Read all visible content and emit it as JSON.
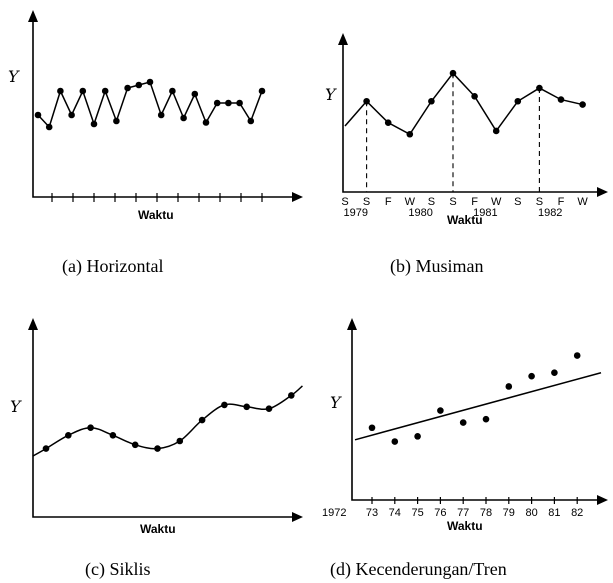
{
  "chart_data": [
    {
      "type": "line",
      "caption": "(a) Horizontal",
      "ylabel": "Y",
      "xlabel": "Waktu",
      "points": [
        [
          1,
          0.5
        ],
        [
          2,
          0.42
        ],
        [
          3,
          0.66
        ],
        [
          4,
          0.5
        ],
        [
          5,
          0.66
        ],
        [
          6,
          0.44
        ],
        [
          7,
          0.66
        ],
        [
          8,
          0.46
        ],
        [
          9,
          0.68
        ],
        [
          10,
          0.7
        ],
        [
          11,
          0.72
        ],
        [
          12,
          0.5
        ],
        [
          13,
          0.66
        ],
        [
          14,
          0.48
        ],
        [
          15,
          0.64
        ],
        [
          16,
          0.45
        ],
        [
          17,
          0.58
        ],
        [
          18,
          0.58
        ],
        [
          19,
          0.58
        ],
        [
          20,
          0.46
        ],
        [
          21,
          0.66
        ]
      ]
    },
    {
      "type": "line",
      "caption": "(b) Musiman",
      "ylabel": "Y",
      "xlabel": "Waktu",
      "x_tick_labels": [
        "S",
        "S",
        "F",
        "W",
        "S",
        "S",
        "F",
        "W",
        "S",
        "S",
        "F",
        "W"
      ],
      "year_labels": [
        "1979",
        "1980",
        "1981",
        "1982"
      ],
      "points": [
        [
          0,
          0.4
        ],
        [
          1,
          0.55
        ],
        [
          2,
          0.42
        ],
        [
          3,
          0.35
        ],
        [
          4,
          0.55
        ],
        [
          5,
          0.72
        ],
        [
          6,
          0.58
        ],
        [
          7,
          0.37
        ],
        [
          8,
          0.55
        ],
        [
          9,
          0.63
        ],
        [
          10,
          0.56
        ],
        [
          11,
          0.53
        ]
      ],
      "dashed_drop_at": [
        1,
        5,
        9
      ]
    },
    {
      "type": "line",
      "caption": "(c) Siklis",
      "ylabel": "Y",
      "xlabel": "Waktu",
      "points": [
        [
          0,
          0.36
        ],
        [
          1,
          0.43
        ],
        [
          2,
          0.47
        ],
        [
          3,
          0.43
        ],
        [
          4,
          0.38
        ],
        [
          5,
          0.36
        ],
        [
          6,
          0.4
        ],
        [
          7,
          0.51
        ],
        [
          8,
          0.59
        ],
        [
          9,
          0.58
        ],
        [
          10,
          0.57
        ],
        [
          11,
          0.64
        ]
      ],
      "curve": [
        [
          -0.6,
          0.32
        ],
        [
          0,
          0.36
        ],
        [
          1,
          0.43
        ],
        [
          2,
          0.47
        ],
        [
          3,
          0.43
        ],
        [
          4,
          0.38
        ],
        [
          5,
          0.36
        ],
        [
          6,
          0.4
        ],
        [
          7,
          0.51
        ],
        [
          8,
          0.59
        ],
        [
          9,
          0.58
        ],
        [
          10,
          0.57
        ],
        [
          11,
          0.64
        ],
        [
          11.5,
          0.69
        ]
      ]
    },
    {
      "type": "scatter",
      "caption": "(d) Kecenderungan/Tren",
      "ylabel": "Y",
      "xlabel": "Waktu",
      "x_origin_label": "1972",
      "categories": [
        "73",
        "74",
        "75",
        "76",
        "77",
        "78",
        "79",
        "80",
        "81",
        "82"
      ],
      "values": [
        0.42,
        0.34,
        0.37,
        0.52,
        0.45,
        0.47,
        0.66,
        0.72,
        0.74,
        0.84
      ],
      "trend": {
        "start": 0.35,
        "end": 0.74
      }
    }
  ]
}
